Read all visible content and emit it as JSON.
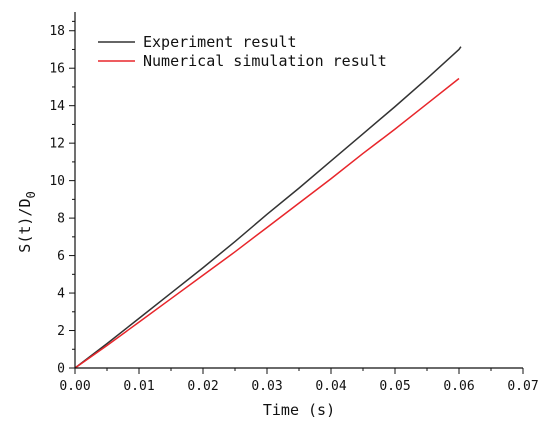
{
  "chart_data": {
    "type": "line",
    "xlabel": "Time (s)",
    "ylabel_main": "S(t)/D",
    "ylabel_sub": "0",
    "xlim": [
      0,
      0.07
    ],
    "ylim": [
      0,
      19
    ],
    "x_ticks": [
      0,
      0.01,
      0.02,
      0.03,
      0.04,
      0.05,
      0.06,
      0.07
    ],
    "x_tick_labels": [
      "0.00",
      "0.01",
      "0.02",
      "0.03",
      "0.04",
      "0.05",
      "0.06",
      "0.07"
    ],
    "y_ticks": [
      0,
      2,
      4,
      6,
      8,
      10,
      12,
      14,
      16,
      18
    ],
    "y_tick_labels": [
      "0",
      "2",
      "4",
      "6",
      "8",
      "10",
      "12",
      "14",
      "16",
      "18"
    ],
    "grid": false,
    "legend_position": "top-left",
    "series": [
      {
        "name": "Experiment result",
        "color": "#333333",
        "points": [
          [
            0,
            0
          ],
          [
            0.005,
            1.3
          ],
          [
            0.01,
            2.65
          ],
          [
            0.015,
            4.0
          ],
          [
            0.02,
            5.35
          ],
          [
            0.025,
            6.75
          ],
          [
            0.03,
            8.2
          ],
          [
            0.035,
            9.6
          ],
          [
            0.04,
            11.05
          ],
          [
            0.045,
            12.5
          ],
          [
            0.05,
            13.95
          ],
          [
            0.055,
            15.45
          ],
          [
            0.06,
            17.0
          ],
          [
            0.0603,
            17.15
          ]
        ]
      },
      {
        "name": "Numerical simulation result",
        "color": "#e8262b",
        "points": [
          [
            0,
            0
          ],
          [
            0.005,
            1.2
          ],
          [
            0.01,
            2.45
          ],
          [
            0.015,
            3.7
          ],
          [
            0.02,
            4.95
          ],
          [
            0.025,
            6.2
          ],
          [
            0.03,
            7.5
          ],
          [
            0.035,
            8.8
          ],
          [
            0.04,
            10.1
          ],
          [
            0.045,
            11.45
          ],
          [
            0.05,
            12.75
          ],
          [
            0.055,
            14.1
          ],
          [
            0.06,
            15.45
          ]
        ]
      }
    ]
  }
}
